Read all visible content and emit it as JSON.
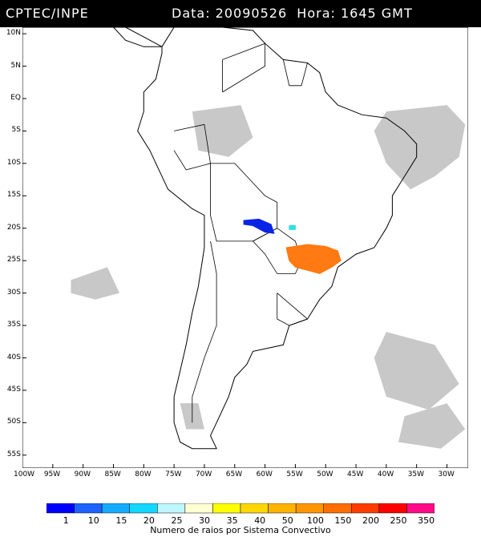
{
  "header": {
    "org": "CPTEC/INPE",
    "datetime": "Data: 20090526  Hora: 1645 GMT"
  },
  "map": {
    "lat_labels": [
      "10N",
      "5N",
      "EQ",
      "5S",
      "10S",
      "15S",
      "20S",
      "25S",
      "30S",
      "35S",
      "40S",
      "45S",
      "50S",
      "55S"
    ],
    "lon_labels": [
      "100W",
      "95W",
      "90W",
      "85W",
      "80W",
      "75W",
      "70W",
      "65W",
      "60W",
      "55W",
      "50W",
      "45W",
      "40W",
      "35W",
      "30W"
    ],
    "lat_range": [
      11,
      -57
    ],
    "lon_range": [
      -100,
      -26.5
    ],
    "colors": {
      "background": "#ffffff",
      "coastline": "#000000",
      "cloud": "#c8c8c8",
      "system_blue": "#0a24e6",
      "system_cyan": "#2de0e6",
      "system_orange": "#ff7a12"
    },
    "convective_systems": [
      {
        "category": "1-10",
        "color": "#0a24e6",
        "center_lat": -19.5,
        "center_lon": -61.0
      },
      {
        "category": "25-30",
        "color": "#2de0e6",
        "center_lat": -19.8,
        "center_lon": -55.5
      },
      {
        "category": "150-200",
        "color": "#ff7a12",
        "center_lat": -25.0,
        "center_lon": -52.5
      }
    ]
  },
  "colorbar": {
    "labels": [
      "1",
      "10",
      "15",
      "20",
      "25",
      "30",
      "35",
      "40",
      "50",
      "100",
      "150",
      "200",
      "250",
      "350"
    ],
    "colors": [
      "#0000ff",
      "#1e62ff",
      "#14aaff",
      "#12d7ff",
      "#bff7ff",
      "#ffffd2",
      "#ffff00",
      "#ffd700",
      "#ffb400",
      "#ff9600",
      "#ff6e00",
      "#ff3c00",
      "#ff0000",
      "#ff0a88"
    ],
    "title": "Numero de raios por Sistema Convectivo"
  }
}
